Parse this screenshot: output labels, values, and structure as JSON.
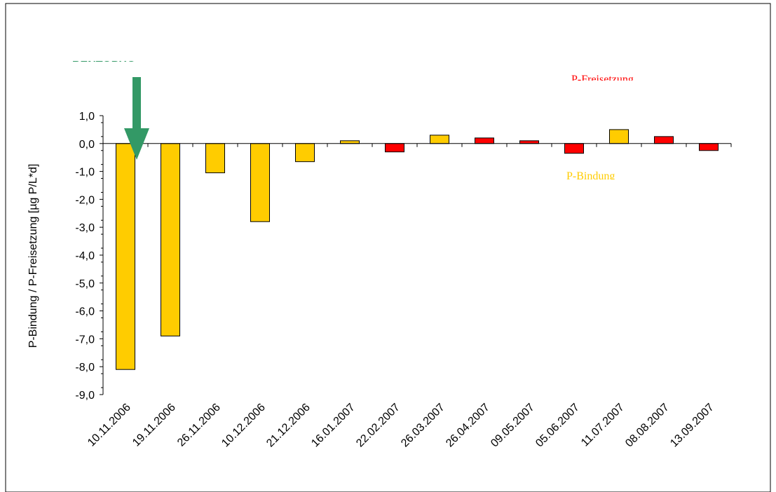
{
  "chart_data": {
    "type": "bar",
    "ylabel": "P-Bindung / P-Freisetzung [µg P/L*d]",
    "categories": [
      "10.11.2006",
      "19.11.2006",
      "26.11.2006",
      "10.12.2006",
      "21.12.2006",
      "16.01.2007",
      "22.02.2007",
      "26.03.2007",
      "26.04.2007",
      "09.05.2007",
      "05.06.2007",
      "11.07.2007",
      "08.08.2007",
      "13.09.2007"
    ],
    "values": [
      -8.1,
      -6.9,
      -1.05,
      -2.8,
      -0.65,
      0.1,
      -0.3,
      0.3,
      0.2,
      0.1,
      -0.35,
      0.5,
      0.25,
      -0.25
    ],
    "colors": [
      "#ffcc00",
      "#ffcc00",
      "#ffcc00",
      "#ffcc00",
      "#ffcc00",
      "#ffcc00",
      "#ff0000",
      "#ffcc00",
      "#ff0000",
      "#ff0000",
      "#ff0000",
      "#ffcc00",
      "#ff0000",
      "#ff0000"
    ],
    "ylim": [
      -9,
      1
    ],
    "yticks": [
      {
        "value": 1,
        "label": "1,0"
      },
      {
        "value": 0,
        "label": "0,0"
      },
      {
        "value": -1,
        "label": "-1,0"
      },
      {
        "value": -2,
        "label": "-2,0"
      },
      {
        "value": -3,
        "label": "-3,0"
      },
      {
        "value": -4,
        "label": "-4,0"
      },
      {
        "value": -5,
        "label": "-5,0"
      },
      {
        "value": -6,
        "label": "-6,0"
      },
      {
        "value": -7,
        "label": "-7,0"
      },
      {
        "value": -8,
        "label": "-8,0"
      },
      {
        "value": -9,
        "label": "-9,0"
      }
    ],
    "annotations": [
      {
        "text": "BENTOPHO",
        "color": "#339966"
      },
      {
        "text": "P-Freisetzung",
        "color": "#ff0000"
      },
      {
        "text": "P-Bindung",
        "color": "#ffcc00"
      }
    ]
  }
}
